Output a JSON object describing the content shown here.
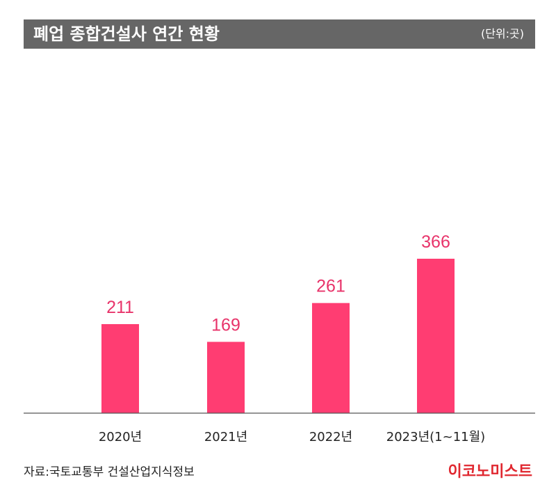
{
  "header": {
    "title": "폐업 종합건설사 연간 현황",
    "unit": "(단위:곳)"
  },
  "chart_data": {
    "type": "bar",
    "title": "폐업 종합건설사 연간 현황",
    "unit": "(단위:곳)",
    "categories": [
      "2020년",
      "2021년",
      "2022년",
      "2023년(1~11월)"
    ],
    "values": [
      211,
      169,
      261,
      366
    ],
    "xlabel": "",
    "ylabel": "",
    "ylim": [
      0,
      400
    ],
    "grid": false,
    "bar_color": "#ff3d72",
    "label_color": "#e8336a"
  },
  "footer": {
    "source": "자료:국토교통부 건설산업지식정보",
    "brand": "이코노미스트"
  },
  "colors": {
    "header_bg": "#666666",
    "brand": "#e0272f",
    "bar": "#ff3d72",
    "value_label": "#e8336a"
  }
}
